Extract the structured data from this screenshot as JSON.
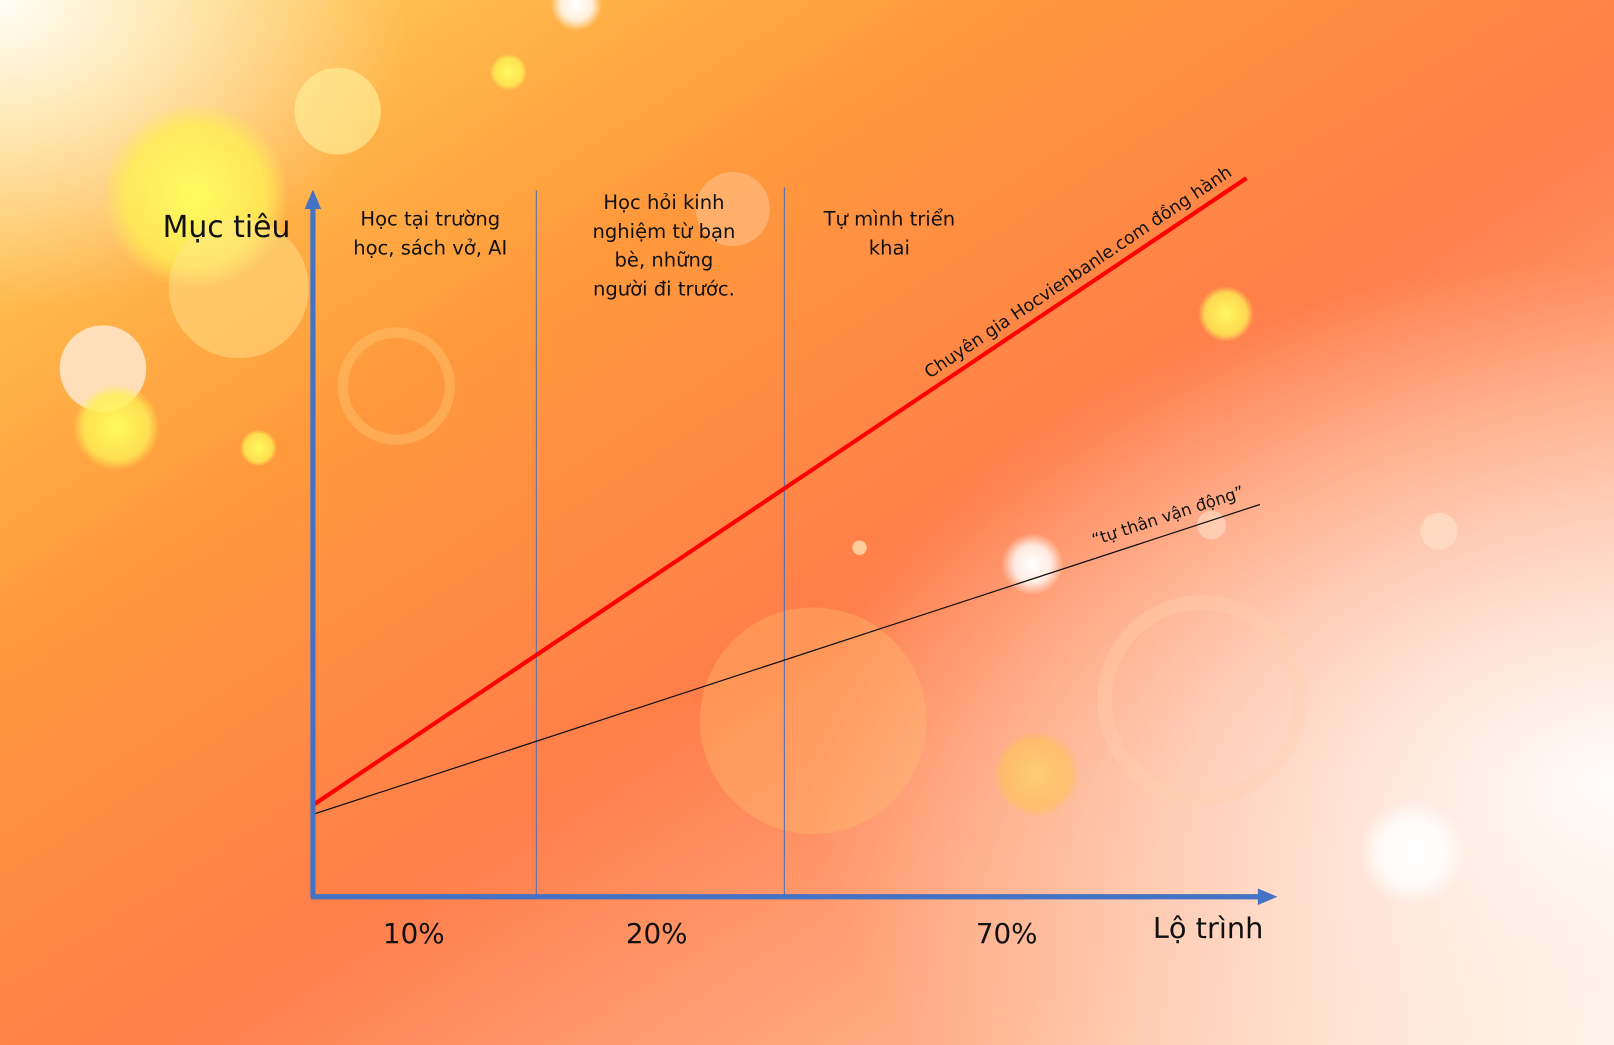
{
  "axes": {
    "y_label": "Mục tiêu",
    "x_label": "Lộ trình"
  },
  "zones": [
    {
      "lines": [
        "Học tại trường",
        "học, sách vở, AI"
      ],
      "percent": "10%"
    },
    {
      "lines": [
        "Học hỏi kinh",
        "nghiệm từ bạn",
        "bè, những",
        "người đi trước."
      ],
      "percent": "20%"
    },
    {
      "lines": [
        "Tự mình triển",
        "khai"
      ],
      "percent": "70%"
    }
  ],
  "lines": {
    "expert": {
      "label": "Chuyên gia Hocvienbanle.com đồng hành",
      "color": "#ff0000"
    },
    "self": {
      "label": "“tự thân vận động”",
      "color": "#111111"
    }
  },
  "colors": {
    "axis": "#4472c4",
    "divider": "#4a6fb5"
  }
}
